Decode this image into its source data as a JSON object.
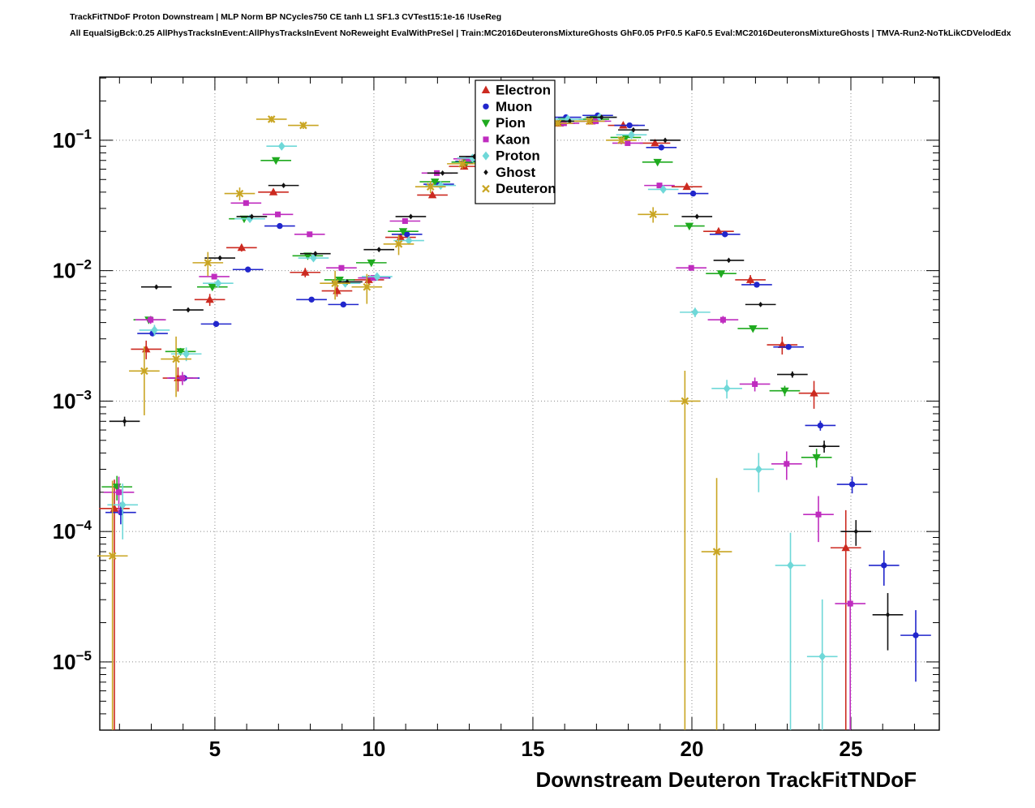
{
  "header": {
    "line1": "TrackFitTNDoF Proton Downstream | MLP Norm BP NCycles750 CE tanh L1 SF1.3 CVTest15:1e-16 !UseReg",
    "line2": "All EqualSigBck:0.25 AllPhysTracksInEvent:AllPhysTracksInEvent NoReweight EvalWithPreSel | Train:MC2016DeuteronsMixtureGhosts GhF0.05 PrF0.5 KaF0.5 Eval:MC2016DeuteronsMixtureGhosts | TMVA-Run2-NoTkLikCDVelodEdx"
  },
  "chart_data": {
    "type": "scatter",
    "title": "TrackFitTNDoF Proton Downstream",
    "xlabel": "Downstream Deuteron TrackFitTNDoF",
    "ylabel": "",
    "y_scale": "log",
    "grid": "dotted",
    "grid_color": "#8a8a8a",
    "frame_color": "#000000",
    "background": "#ffffff",
    "legend_position": "top-center",
    "xlim": [
      1.38,
      27.78
    ],
    "ylim": [
      3e-06,
      0.305
    ],
    "x_ticks_major": [
      5,
      10,
      15,
      20,
      25
    ],
    "y_tick_exponents": [
      -1,
      -2,
      -3,
      -4,
      -5
    ],
    "x": [
      2,
      3,
      4,
      5,
      6,
      7,
      8,
      9,
      10,
      11,
      12,
      13,
      14,
      15,
      16,
      17,
      18,
      19,
      20,
      21,
      22,
      23,
      24,
      25,
      26,
      27
    ],
    "series": [
      {
        "name": "Electron",
        "color": "#cc2a20",
        "marker": "triangle-up",
        "marker_size": 5.5,
        "stat_n": 15000,
        "x_offset": -0.16,
        "values": [
          0.00015,
          0.0025,
          0.0015,
          0.006,
          0.015,
          0.04,
          0.0097,
          0.007,
          0.0085,
          0.018,
          0.038,
          0.063,
          0.1,
          0.13,
          0.135,
          0.14,
          0.13,
          0.095,
          0.044,
          0.02,
          0.0085,
          0.0027,
          0.00115,
          7.5e-05,
          null,
          null
        ]
      },
      {
        "name": "Muon",
        "color": "#2126cc",
        "marker": "circle",
        "marker_size": 4.5,
        "stat_n": 200000,
        "x_offset": 0.04,
        "values": [
          0.00014,
          0.0033,
          0.0015,
          0.0039,
          0.0102,
          0.022,
          0.006,
          0.0055,
          0.0088,
          0.019,
          0.046,
          0.069,
          0.105,
          0.135,
          0.15,
          0.155,
          0.13,
          0.088,
          0.039,
          0.019,
          0.0078,
          0.0026,
          0.00065,
          0.00023,
          5.5e-05,
          1.6e-05
        ]
      },
      {
        "name": "Pion",
        "color": "#1faa1f",
        "marker": "triangle-down",
        "marker_size": 5.5,
        "stat_n": 100000,
        "x_offset": -0.08,
        "values": [
          0.00022,
          0.0042,
          0.0024,
          0.0075,
          0.025,
          0.07,
          0.013,
          0.0085,
          0.0115,
          0.02,
          0.048,
          0.068,
          0.11,
          0.135,
          0.14,
          0.145,
          0.105,
          0.068,
          0.022,
          0.0095,
          0.0036,
          0.0012,
          0.00037,
          null,
          null,
          null
        ]
      },
      {
        "name": "Kaon",
        "color": "#bf2cbf",
        "marker": "square",
        "marker_size": 4.5,
        "stat_n": 50000,
        "x_offset": -0.02,
        "values": [
          0.0002,
          0.0042,
          0.0015,
          0.009,
          0.033,
          0.027,
          0.019,
          0.0105,
          0.0088,
          0.024,
          0.056,
          0.072,
          0.11,
          0.13,
          0.135,
          0.14,
          0.095,
          0.045,
          0.0105,
          0.0042,
          0.00135,
          0.00033,
          0.000135,
          2.8e-05,
          null,
          null
        ]
      },
      {
        "name": "Proton",
        "color": "#6fd8d8",
        "marker": "diamond",
        "marker_size": 5.5,
        "stat_n": 30000,
        "x_offset": 0.1,
        "values": [
          0.00016,
          0.0035,
          0.0023,
          0.008,
          0.025,
          0.09,
          0.0125,
          0.008,
          0.009,
          0.017,
          0.045,
          0.073,
          0.115,
          0.14,
          0.145,
          0.15,
          0.11,
          0.042,
          0.0048,
          0.00125,
          0.0003,
          5.5e-05,
          1.1e-05,
          null,
          null,
          null
        ]
      },
      {
        "name": "Ghost",
        "color": "#111111",
        "marker": "diamond",
        "marker_size": 3.4,
        "stat_n": 200000,
        "x_offset": 0.16,
        "values": [
          0.0007,
          0.0075,
          0.005,
          0.0125,
          0.026,
          0.045,
          0.0135,
          0.0082,
          0.0145,
          0.026,
          0.056,
          0.075,
          0.11,
          0.135,
          0.14,
          0.15,
          0.12,
          0.1,
          0.026,
          0.012,
          0.0055,
          0.0016,
          0.00045,
          0.0001,
          2.3e-05,
          null
        ]
      },
      {
        "name": "Deuteron",
        "color": "#c9a522",
        "marker": "x",
        "marker_size": 5.0,
        "stat_n": 2000,
        "x_offset": -0.22,
        "values": [
          6.5e-05,
          0.0017,
          0.0021,
          0.0115,
          0.039,
          0.145,
          0.13,
          0.008,
          0.0075,
          0.016,
          0.044,
          0.066,
          0.105,
          0.13,
          0.135,
          0.14,
          0.1,
          0.027,
          0.001,
          7e-05,
          null,
          null,
          null,
          null,
          null,
          null
        ]
      }
    ]
  }
}
